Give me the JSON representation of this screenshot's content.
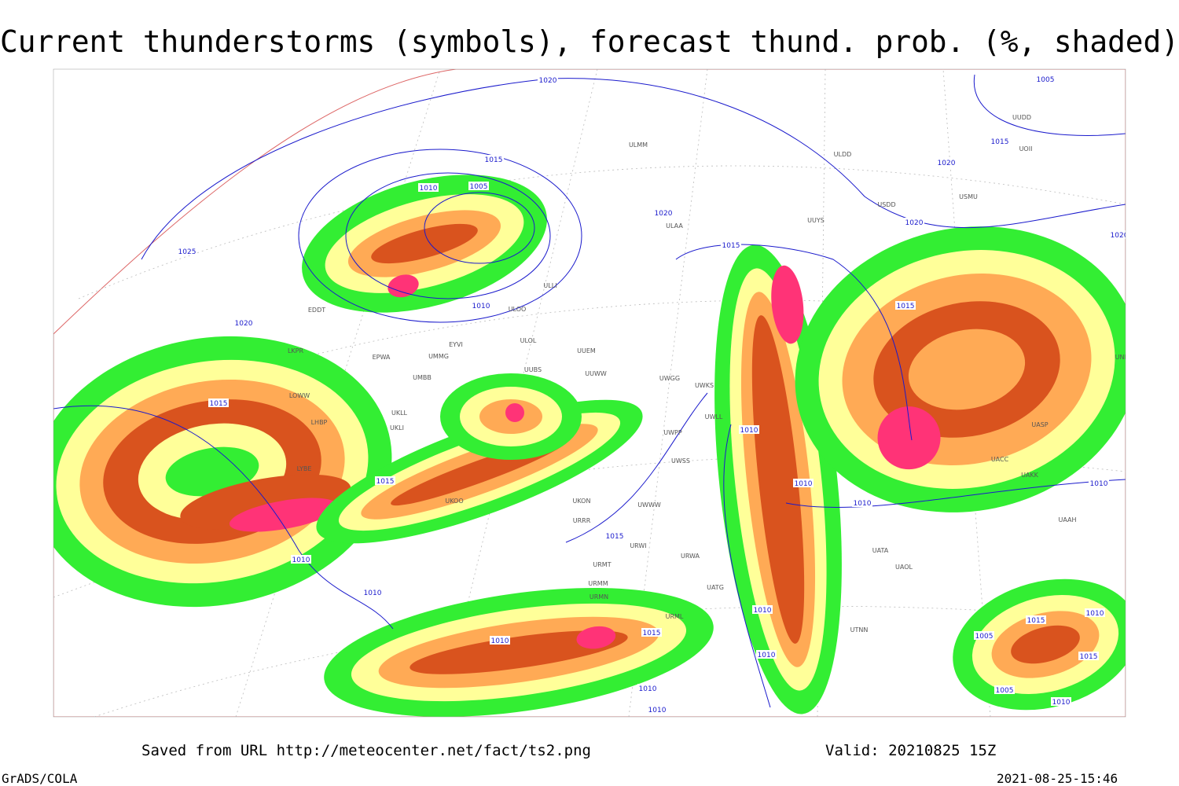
{
  "title": "Current thunderstorms (symbols), forecast thund. prob. (%, shaded)",
  "footer": {
    "source": "Saved from URL http://meteocenter.net/fact/ts2.png",
    "valid": "Valid: 20210825 15Z",
    "software": "GrADS/COLA",
    "timestamp": "2021-08-25-15:46"
  },
  "isobar_labels": [
    "1020",
    "1005",
    "1015",
    "1015",
    "1010",
    "1005",
    "1020",
    "1020",
    "1020",
    "1025",
    "1015",
    "1020",
    "1015",
    "1010",
    "1015",
    "1010",
    "1015",
    "1010",
    "1010",
    "1010",
    "1010",
    "1015",
    "1010",
    "1010",
    "1010",
    "1015",
    "1010",
    "1010",
    "1010",
    "1015",
    "1010",
    "1005",
    "1015",
    "1005",
    "1010",
    "1020"
  ],
  "stations": [
    "ULMM",
    "ULDD",
    "USMU",
    "USDD",
    "UUYS",
    "ULAA",
    "ULLI",
    "ULOO",
    "ULOL",
    "EDDT",
    "EYVI",
    "UMMG",
    "EPWA",
    "LKPR",
    "UUEM",
    "UUWW",
    "UWGG",
    "UWKS",
    "UMBB",
    "LOWW",
    "UKLL",
    "UKLI",
    "LHBP",
    "UUBS",
    "UWPP",
    "UWLL",
    "UWSS",
    "LYBE",
    "UKOO",
    "UWWW",
    "URWI",
    "URRR",
    "UKON",
    "URWA",
    "URMT",
    "URMM",
    "URMN",
    "URML",
    "UATG",
    "UTNN",
    "UAOL",
    "UATA",
    "UAAH",
    "UAKK",
    "UACC",
    "UASP",
    "UNNT",
    "UUDD",
    "UOII"
  ]
}
